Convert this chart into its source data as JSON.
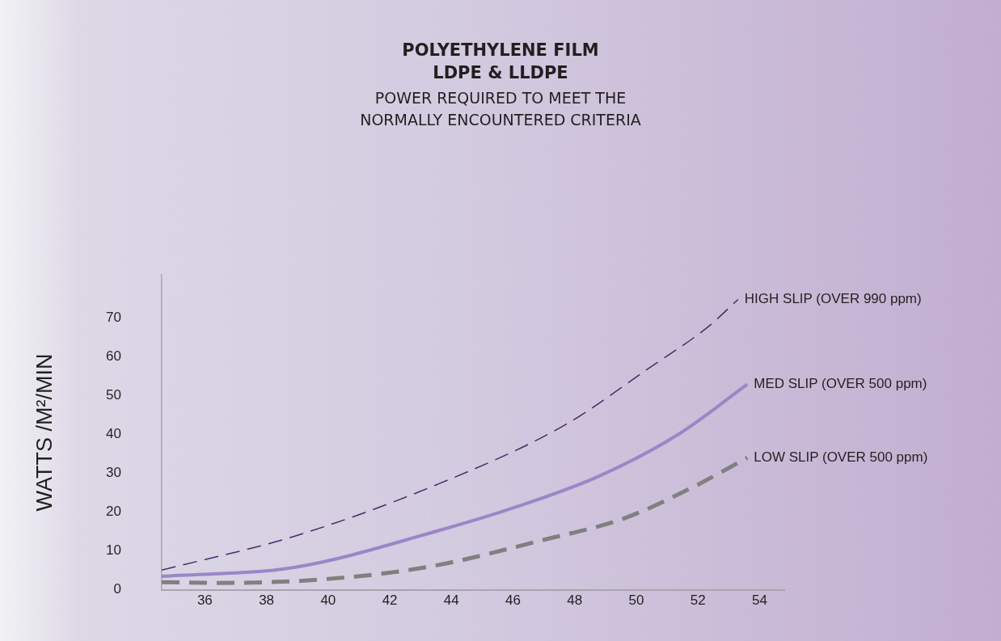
{
  "chart_data": {
    "type": "line",
    "title": "POLYETHYLENE FILM\nLDPE & LLDPE",
    "subtitle": "POWER REQUIRED TO MEET THE\nNORMALLY ENCOUNTERED CRITERIA",
    "ylabel": "WATTS /M²/MIN",
    "xlim": [
      34.6,
      54.8
    ],
    "ylim": [
      0,
      81
    ],
    "xticks": [
      36,
      38,
      40,
      42,
      44,
      46,
      48,
      50,
      52,
      54
    ],
    "yticks": [
      0,
      10,
      20,
      30,
      40,
      50,
      60,
      70
    ],
    "grid": false,
    "legend": false,
    "marker": "none",
    "series": [
      {
        "name": "HIGH SLIP (OVER 990 ppm)",
        "color": "#4a2a6a",
        "line_style": "dashed",
        "x": [
          34.6,
          38.9,
          43.5,
          47.7,
          50.4,
          52.3,
          53.3
        ],
        "values": [
          5.1,
          13.8,
          27,
          42.5,
          57,
          67.5,
          74.7
        ]
      },
      {
        "name": "MED SLIP (OVER 500 ppm)",
        "color": "#9b86c8",
        "line_style": "solid",
        "x": [
          34.6,
          38.9,
          43.6,
          46.2,
          48.8,
          51.4,
          53.6
        ],
        "values": [
          3.5,
          5.8,
          15.3,
          21.6,
          29.3,
          40.2,
          52.9
        ]
      },
      {
        "name": "LOW SLIP (OVER 500 ppm)",
        "color": "#808080",
        "line_style": "dashed",
        "x": [
          34.6,
          36.3,
          39.8,
          43.3,
          47.0,
          49.6,
          51.9,
          53.6
        ],
        "values": [
          2.0,
          1.8,
          2.7,
          6.0,
          12.9,
          18.4,
          26.7,
          34
        ]
      }
    ]
  }
}
